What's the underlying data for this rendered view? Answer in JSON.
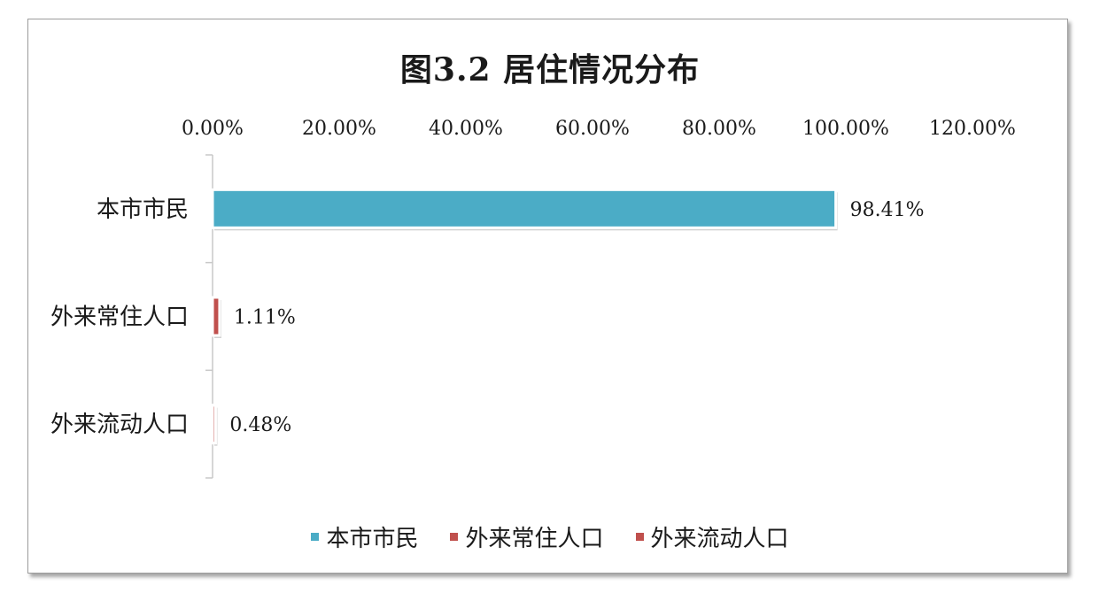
{
  "chart_data": {
    "type": "bar",
    "orientation": "horizontal",
    "title": "图3.2 居住情况分布",
    "categories": [
      "本市市民",
      "外来常住人口",
      "外来流动人口"
    ],
    "values": [
      98.41,
      1.11,
      0.48
    ],
    "data_labels": [
      "98.41%",
      "1.11%",
      "0.48%"
    ],
    "xlim": [
      0,
      120
    ],
    "xticks": [
      0,
      20,
      40,
      60,
      80,
      100,
      120
    ],
    "xtick_labels": [
      "0.00%",
      "20.00%",
      "40.00%",
      "60.00%",
      "80.00%",
      "100.00%",
      "120.00%"
    ],
    "x_axis_position": "top",
    "grid": false,
    "legend_position": "bottom",
    "legend": [
      "本市市民",
      "外来常住人口",
      "外来流动人口"
    ],
    "colors": [
      "#4bacc6",
      "#c0504d",
      "#c0504d"
    ]
  }
}
